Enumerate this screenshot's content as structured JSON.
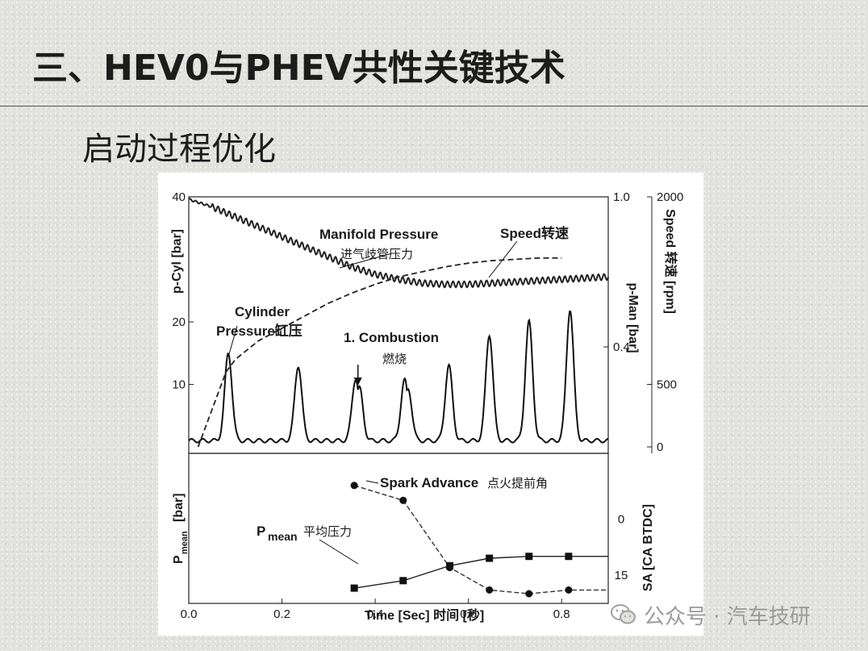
{
  "slide": {
    "title": "三、HEV0与PHEV共性关键技术",
    "subtitle": "启动过程优化"
  },
  "watermark": {
    "text": "公众号 · 汽车技研",
    "icon": "wechat-icon"
  },
  "chart_data": [
    {
      "type": "line",
      "panel": "top",
      "x_range": [
        0.0,
        0.9
      ],
      "left_axis": {
        "label": "p-Cyl  [bar]",
        "ylim": [
          0,
          40
        ],
        "ticks": [
          "40",
          "20",
          "10"
        ],
        "tick_values": [
          40,
          20,
          10
        ]
      },
      "right_axis_pressure": {
        "label": "p-Man  [bar]",
        "ylim": [
          0,
          1.0
        ],
        "ticks": [
          "1.0",
          "0.4"
        ],
        "tick_values": [
          1.0,
          0.4
        ]
      },
      "right_axis_speed": {
        "label": "Speed 转速  [rpm]",
        "ylim": [
          0,
          2000
        ],
        "ticks": [
          "2000",
          "500",
          "0"
        ],
        "tick_values": [
          2000,
          500,
          0
        ]
      },
      "series": [
        {
          "name": "Cylinder Pressure缸压",
          "axis": "p-Cyl",
          "style": "solid",
          "baseline": 1,
          "peaks": [
            {
              "x": 0.085,
              "y": 15
            },
            {
              "x": 0.235,
              "y": 13
            },
            {
              "x": 0.358,
              "y": 11.5,
              "double": true
            },
            {
              "x": 0.463,
              "y": 11.2,
              "double": true
            },
            {
              "x": 0.558,
              "y": 13
            },
            {
              "x": 0.645,
              "y": 18
            },
            {
              "x": 0.73,
              "y": 20
            },
            {
              "x": 0.818,
              "y": 22
            }
          ]
        },
        {
          "name": "Manifold Pressure 进气歧管压力",
          "axis": "p-Man",
          "style": "solid-wavy",
          "points": [
            [
              0.0,
              0.99
            ],
            [
              0.05,
              0.96
            ],
            [
              0.1,
              0.92
            ],
            [
              0.15,
              0.88
            ],
            [
              0.2,
              0.84
            ],
            [
              0.25,
              0.8
            ],
            [
              0.3,
              0.76
            ],
            [
              0.35,
              0.72
            ],
            [
              0.4,
              0.69
            ],
            [
              0.45,
              0.67
            ],
            [
              0.5,
              0.655
            ],
            [
              0.55,
              0.65
            ],
            [
              0.6,
              0.65
            ],
            [
              0.65,
              0.655
            ],
            [
              0.7,
              0.66
            ],
            [
              0.75,
              0.665
            ],
            [
              0.8,
              0.67
            ],
            [
              0.85,
              0.675
            ],
            [
              0.9,
              0.68
            ]
          ]
        },
        {
          "name": "Speed转速",
          "axis": "Speed",
          "style": "dashed",
          "points": [
            [
              0.02,
              0
            ],
            [
              0.05,
              300
            ],
            [
              0.08,
              600
            ],
            [
              0.1,
              700
            ],
            [
              0.15,
              850
            ],
            [
              0.2,
              950
            ],
            [
              0.25,
              1050
            ],
            [
              0.3,
              1150
            ],
            [
              0.35,
              1230
            ],
            [
              0.4,
              1300
            ],
            [
              0.45,
              1360
            ],
            [
              0.5,
              1400
            ],
            [
              0.55,
              1440
            ],
            [
              0.6,
              1470
            ],
            [
              0.65,
              1490
            ],
            [
              0.7,
              1500
            ],
            [
              0.75,
              1510
            ],
            [
              0.8,
              1510
            ]
          ]
        }
      ],
      "annotations": [
        {
          "text": "Manifold Pressure",
          "cn": "进气歧管压力"
        },
        {
          "text": "Speed转速"
        },
        {
          "text": "Cylinder",
          "text2": "Pressure缸压"
        },
        {
          "text": "1. Combustion",
          "cn": "燃烧"
        }
      ]
    },
    {
      "type": "line",
      "panel": "bottom",
      "x_range": [
        0.0,
        0.9
      ],
      "xlabel": "Time [Sec] 时间    [秒]",
      "x_ticks": [
        "0.0",
        "0.2",
        "0.4",
        "0.6",
        "0.8"
      ],
      "x_tick_values": [
        0.0,
        0.2,
        0.4,
        0.6,
        0.8
      ],
      "left_axis": {
        "label_main": "P",
        "label_sub": "mean",
        "label_unit": "[bar]"
      },
      "right_axis": {
        "label": "SA  [CA BTDC]",
        "ticks": [
          "0",
          "15"
        ],
        "tick_values": [
          0,
          15
        ],
        "ylim": [
          -15,
          20
        ]
      },
      "series": [
        {
          "name": "Spark Advance点火提前角",
          "marker": "circle",
          "style": "dashed",
          "axis": "SA",
          "points": [
            [
              0.355,
              -9
            ],
            [
              0.46,
              -5
            ],
            [
              0.56,
              13
            ],
            [
              0.645,
              19
            ],
            [
              0.73,
              20
            ],
            [
              0.815,
              19
            ],
            [
              0.9,
              19
            ]
          ]
        },
        {
          "name": "Pmean平均压力",
          "marker": "square",
          "style": "solid",
          "axis": "SA",
          "points": [
            [
              0.355,
              18.5
            ],
            [
              0.46,
              16.5
            ],
            [
              0.56,
              12.5
            ],
            [
              0.645,
              10.5
            ],
            [
              0.73,
              10
            ],
            [
              0.815,
              10
            ],
            [
              0.9,
              10
            ]
          ]
        }
      ],
      "annotations": [
        {
          "text": "Spark Advance",
          "cn": "点火提前角"
        },
        {
          "text_main": "P",
          "text_sub": "mean",
          "cn": "平均压力"
        }
      ]
    }
  ]
}
